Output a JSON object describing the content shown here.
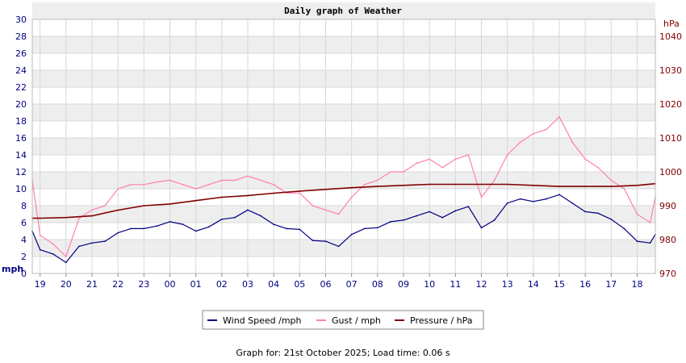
{
  "chart_data": {
    "type": "line",
    "title": "Daily graph of Weather",
    "left_unit": "mph",
    "right_unit": "hPa",
    "y_left": {
      "ylim": [
        0,
        30
      ],
      "ticks": [
        "0",
        "2",
        "4",
        "6",
        "8",
        "10",
        "12",
        "14",
        "16",
        "18",
        "20",
        "22",
        "24",
        "26",
        "28",
        "30"
      ]
    },
    "y_right": {
      "ylim": [
        970,
        1045
      ],
      "ticks": [
        "970",
        "980",
        "990",
        "1000",
        "1010",
        "1020",
        "1030",
        "1040"
      ]
    },
    "x_ticks": [
      "19",
      "20",
      "21",
      "22",
      "23",
      "00",
      "01",
      "02",
      "03",
      "04",
      "05",
      "06",
      "07",
      "08",
      "09",
      "10",
      "11",
      "12",
      "13",
      "14",
      "15",
      "16",
      "17",
      "18"
    ],
    "x_range_hours": [
      18.7,
      42.7
    ],
    "grid": true,
    "colors": {
      "wind": "#000080",
      "gust": "#ff80b0",
      "pressure": "#800000",
      "band": "#eeeeee",
      "grid": "#d8d8d8"
    },
    "series": [
      {
        "name": "Wind Speed /mph",
        "axis": "left",
        "color": "#000080",
        "x": [
          18.7,
          19,
          19.5,
          20,
          20.5,
          21,
          21.5,
          22,
          22.5,
          23,
          23.5,
          24,
          24.5,
          25,
          25.5,
          26,
          26.5,
          27,
          27.5,
          28,
          28.5,
          29,
          29.5,
          30,
          30.5,
          31,
          31.5,
          32,
          32.5,
          33,
          33.5,
          34,
          34.5,
          35,
          35.5,
          36,
          36.5,
          37,
          37.5,
          38,
          38.5,
          39,
          39.5,
          40,
          40.5,
          41,
          41.5,
          42,
          42.5,
          42.7
        ],
        "values": [
          5,
          2.8,
          2.3,
          1.3,
          3.2,
          3.6,
          3.8,
          4.8,
          5.3,
          5.3,
          5.6,
          6.1,
          5.8,
          5,
          5.5,
          6.4,
          6.6,
          7.5,
          6.8,
          5.8,
          5.3,
          5.2,
          3.9,
          3.8,
          3.2,
          4.6,
          5.3,
          5.4,
          6.1,
          6.3,
          6.8,
          7.3,
          6.6,
          7.4,
          7.9,
          5.4,
          6.3,
          8.3,
          8.8,
          8.5,
          8.8,
          9.3,
          8.3,
          7.3,
          7.1,
          6.4,
          5.3,
          3.8,
          3.6,
          4.6
        ]
      },
      {
        "name": "Gust / mph",
        "axis": "left",
        "color": "#ff80b0",
        "x": [
          18.7,
          19,
          19.5,
          20,
          20.5,
          21,
          21.5,
          22,
          22.5,
          23,
          23.5,
          24,
          24.5,
          25,
          25.5,
          26,
          26.5,
          27,
          27.5,
          28,
          28.5,
          29,
          29.5,
          30,
          30.5,
          31,
          31.5,
          32,
          32.5,
          33,
          33.5,
          34,
          34.5,
          35,
          35.5,
          36,
          36.5,
          37,
          37.5,
          38,
          38.5,
          39,
          39.5,
          40,
          40.5,
          41,
          41.5,
          42,
          42.5,
          42.7
        ],
        "values": [
          11,
          4.5,
          3.5,
          2,
          6.5,
          7.5,
          8,
          10,
          10.5,
          10.5,
          10.8,
          11,
          10.5,
          10,
          10.5,
          11,
          11,
          11.5,
          11,
          10.5,
          9.5,
          9.5,
          8,
          7.5,
          7,
          9,
          10.5,
          11,
          12,
          12,
          13,
          13.5,
          12.5,
          13.5,
          14,
          9,
          11,
          14,
          15.5,
          16.5,
          17,
          18.5,
          15.5,
          13.5,
          12.5,
          11,
          10,
          7,
          6,
          9
        ]
      },
      {
        "name": "Pressure / hPa",
        "axis": "right",
        "color": "#800000",
        "x": [
          18.7,
          19,
          20,
          21,
          22,
          23,
          24,
          25,
          26,
          27,
          28,
          29,
          30,
          31,
          32,
          33,
          34,
          35,
          36,
          37,
          38,
          39,
          40,
          41,
          42,
          42.7
        ],
        "values": [
          986.3,
          986.3,
          986.5,
          987,
          988.7,
          990,
          990.5,
          991.5,
          992.5,
          993,
          993.7,
          994.3,
          994.8,
          995.3,
          995.7,
          996,
          996.3,
          996.3,
          996.3,
          996.3,
          996,
          995.7,
          995.7,
          995.7,
          996,
          996.5
        ]
      }
    ]
  },
  "footer": "Graph for: 21st October 2025; Load time: 0.06 s"
}
